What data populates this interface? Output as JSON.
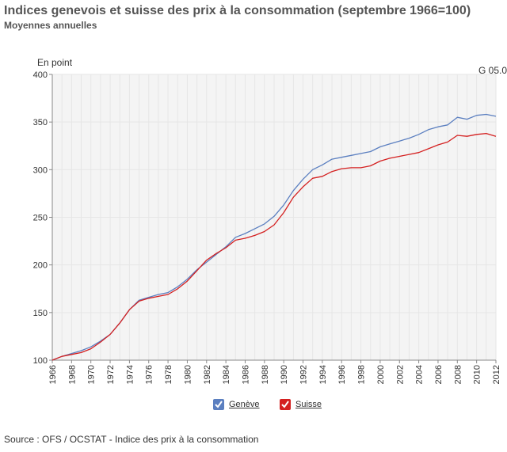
{
  "header": {
    "title": "Indices genevois et suisse des prix à la consommation (septembre 1966=100)",
    "subtitle": "Moyennes annuelles",
    "unit_label": "En point",
    "code": "G 05.0"
  },
  "legend": {
    "items": [
      {
        "label": "Genève",
        "color": "#5b7fc0",
        "checked": true
      },
      {
        "label": "Suisse",
        "color": "#d42020",
        "checked": true
      }
    ]
  },
  "footer": {
    "source": "Source : OFS / OCSTAT - Indice des prix à la consommation"
  },
  "colors": {
    "plot_background": "#f4f4f4",
    "grid": "#e6e6e6",
    "axis": "#888888"
  },
  "chart_data": {
    "type": "line",
    "title": "Indices genevois et suisse des prix à la consommation (septembre 1966=100)",
    "subtitle": "Moyennes annuelles",
    "xlabel": "",
    "ylabel": "En point",
    "xlim": [
      1966,
      2012
    ],
    "ylim": [
      100,
      400
    ],
    "yticks": [
      100,
      150,
      200,
      250,
      300,
      350,
      400
    ],
    "xticks": [
      1966,
      1968,
      1970,
      1972,
      1974,
      1976,
      1978,
      1980,
      1982,
      1984,
      1986,
      1988,
      1990,
      1992,
      1994,
      1996,
      1998,
      2000,
      2002,
      2004,
      2006,
      2008,
      2010,
      2012
    ],
    "grid": true,
    "legend_position": "bottom",
    "x": [
      1966,
      1967,
      1968,
      1969,
      1970,
      1971,
      1972,
      1973,
      1974,
      1975,
      1976,
      1977,
      1978,
      1979,
      1980,
      1981,
      1982,
      1983,
      1984,
      1985,
      1986,
      1987,
      1988,
      1989,
      1990,
      1991,
      1992,
      1993,
      1994,
      1995,
      1996,
      1997,
      1998,
      1999,
      2000,
      2001,
      2002,
      2003,
      2004,
      2005,
      2006,
      2007,
      2008,
      2009,
      2010,
      2011,
      2012
    ],
    "series": [
      {
        "name": "Genève",
        "color": "#5b7fc0",
        "values": [
          100,
          104,
          107,
          110,
          114,
          120,
          127,
          139,
          153,
          163,
          166,
          169,
          171,
          177,
          185,
          195,
          203,
          211,
          219,
          229,
          233,
          238,
          243,
          251,
          263,
          278,
          290,
          300,
          305,
          311,
          313,
          315,
          317,
          319,
          324,
          327,
          330,
          333,
          337,
          342,
          345,
          347,
          355,
          353,
          357,
          358,
          356
        ]
      },
      {
        "name": "Suisse",
        "color": "#d42020",
        "values": [
          100,
          104,
          106,
          108,
          112,
          119,
          127,
          139,
          153,
          162,
          165,
          167,
          169,
          175,
          183,
          194,
          205,
          212,
          218,
          226,
          228,
          231,
          235,
          242,
          255,
          271,
          282,
          291,
          293,
          298,
          301,
          302,
          302,
          304,
          309,
          312,
          314,
          316,
          318,
          322,
          326,
          329,
          336,
          335,
          337,
          338,
          335
        ]
      }
    ]
  }
}
